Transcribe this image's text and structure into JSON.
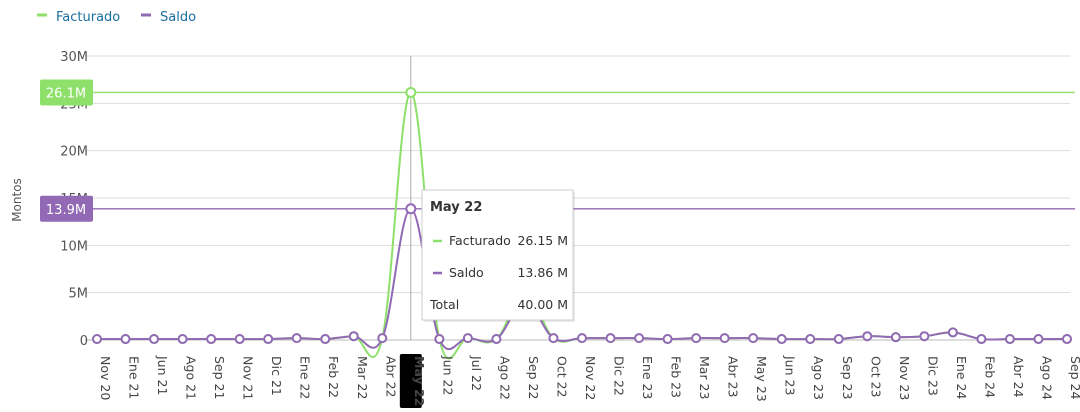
{
  "legend": [
    {
      "name": "Facturado",
      "color": "#8ee06a"
    },
    {
      "name": "Saldo",
      "color": "#9269b5"
    }
  ],
  "chart_data": {
    "type": "line",
    "ylabel": "Montos",
    "ylim": [
      0,
      30
    ],
    "y_ticks": [
      "0",
      "5M",
      "10M",
      "15M",
      "20M",
      "25M",
      "30M"
    ],
    "categories": [
      "Nov 20",
      "Ene 21",
      "Jun 21",
      "Ago 21",
      "Sep 21",
      "Nov 21",
      "Dic 21",
      "Ene 22",
      "Feb 22",
      "Mar 22",
      "Abr 22",
      "May 22",
      "Jun 22",
      "Jul 22",
      "Ago 22",
      "Sep 22",
      "Oct 22",
      "Nov 22",
      "Dic 22",
      "Ene 23",
      "Feb 23",
      "Mar 23",
      "Abr 23",
      "May 23",
      "Jun 23",
      "Ago 23",
      "Sep 23",
      "Oct 23",
      "Nov 23",
      "Dic 23",
      "Ene 24",
      "Feb 24",
      "Abr 24",
      "Ago 24",
      "Sep 24"
    ],
    "series": [
      {
        "name": "Facturado",
        "color": "#8ee06a",
        "values": [
          0.1,
          0.1,
          0.1,
          0.1,
          0.1,
          0.1,
          0.1,
          0.2,
          0.1,
          0.4,
          0.2,
          26.15,
          0.1,
          0.2,
          0.1,
          5.0,
          0.2,
          0.2,
          0.2,
          0.2,
          0.1,
          0.2,
          0.2,
          0.2,
          0.1,
          0.1,
          0.1,
          0.4,
          0.3,
          0.4,
          0.8,
          0.1,
          0.1,
          0.1,
          0.1
        ]
      },
      {
        "name": "Saldo",
        "color": "#9269b5",
        "values": [
          0.1,
          0.1,
          0.1,
          0.1,
          0.1,
          0.1,
          0.1,
          0.2,
          0.1,
          0.4,
          0.2,
          13.86,
          0.1,
          0.2,
          0.1,
          4.0,
          0.2,
          0.2,
          0.2,
          0.2,
          0.1,
          0.2,
          0.2,
          0.2,
          0.1,
          0.1,
          0.1,
          0.4,
          0.3,
          0.4,
          0.8,
          0.1,
          0.1,
          0.1,
          0.1
        ]
      }
    ],
    "highlight_index": 11,
    "crosshair_labels": [
      {
        "series": "Facturado",
        "text": "26.1M",
        "value": 26.15
      },
      {
        "series": "Saldo",
        "text": "13.9M",
        "value": 13.86
      }
    ],
    "tooltip": {
      "title": "May 22",
      "rows": [
        {
          "label": "Facturado",
          "value": "26.15 M",
          "color": "#8ee06a"
        },
        {
          "label": "Saldo",
          "value": "13.86 M",
          "color": "#9269b5"
        }
      ],
      "total_label": "Total",
      "total_value": "40.00 M"
    }
  }
}
